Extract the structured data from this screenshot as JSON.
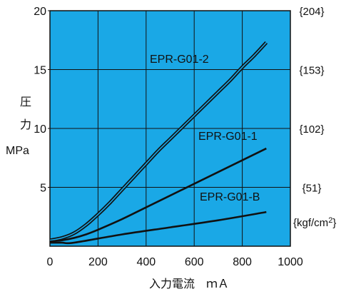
{
  "chart_data": {
    "type": "line",
    "xlabel": "入力電流　ｍＡ",
    "ylabel": [
      "圧",
      "力",
      "MPa"
    ],
    "xlim": [
      0,
      1000
    ],
    "ylim": [
      0,
      20
    ],
    "x_ticks": [
      "0",
      "200",
      "400",
      "600",
      "800",
      "1000"
    ],
    "y_ticks": [
      "5",
      "10",
      "15",
      "20"
    ],
    "y_tick_values": [
      5,
      10,
      15,
      20
    ],
    "y2_ticks": [
      {
        "label": "{51}",
        "at": 5
      },
      {
        "label": "{102}",
        "at": 10
      },
      {
        "label": "{153}",
        "at": 15
      },
      {
        "label": "{204}",
        "at": 20
      }
    ],
    "y2_unit": "{kgf/cm",
    "y2_unit_sup": "2",
    "y2_unit_close": "}",
    "grid": true,
    "background_color": "#1aa8e6",
    "line_color": "#111111",
    "series": [
      {
        "name": "EPR-G01-2",
        "double_line": true,
        "x": [
          0,
          50,
          100,
          150,
          200,
          250,
          300,
          350,
          400,
          450,
          500,
          550,
          600,
          650,
          700,
          750,
          800,
          850,
          900
        ],
        "y": [
          0.5,
          0.7,
          1.1,
          1.8,
          2.7,
          3.7,
          4.8,
          5.9,
          7.0,
          8.1,
          9.1,
          10.1,
          11.1,
          12.1,
          13.1,
          14.1,
          15.2,
          16.2,
          17.3
        ]
      },
      {
        "name": "EPR-G01-1",
        "double_line": false,
        "x": [
          0,
          50,
          100,
          150,
          200,
          300,
          400,
          500,
          600,
          700,
          800,
          900
        ],
        "y": [
          0.4,
          0.5,
          0.7,
          1.0,
          1.4,
          2.3,
          3.3,
          4.3,
          5.3,
          6.3,
          7.3,
          8.3
        ]
      },
      {
        "name": "EPR-G01-B",
        "double_line": false,
        "x": [
          0,
          50,
          100,
          300,
          500,
          700,
          900
        ],
        "y": [
          0.3,
          0.3,
          0.3,
          1.0,
          1.6,
          2.2,
          2.9
        ]
      }
    ]
  }
}
